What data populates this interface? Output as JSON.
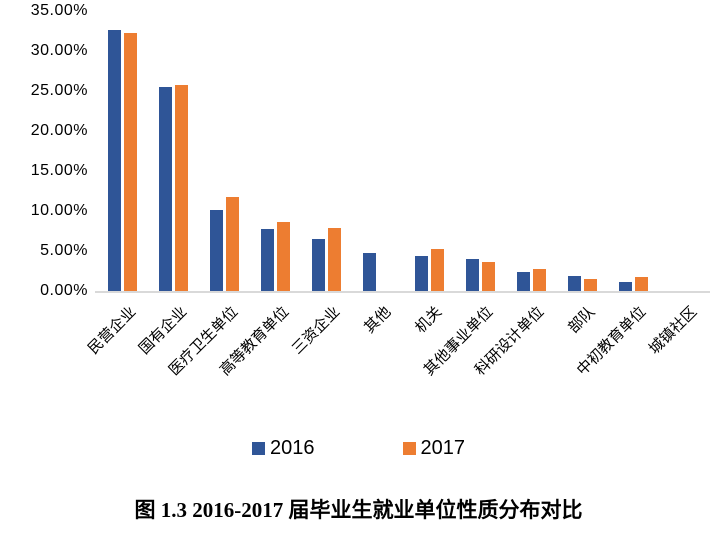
{
  "chart_data": {
    "type": "bar",
    "title": "",
    "categories": [
      "民营企业",
      "国有企业",
      "医疗卫生单位",
      "高等教育单位",
      "三资企业",
      "其他",
      "机关",
      "其他事业单位",
      "科研设计单位",
      "部队",
      "中初教育单位",
      "城镇社区"
    ],
    "series": [
      {
        "name": "2016",
        "color": "#2F5597",
        "values": [
          32.6,
          25.5,
          10.1,
          7.7,
          6.5,
          4.8,
          4.4,
          4.0,
          2.4,
          1.9,
          1.1,
          0
        ]
      },
      {
        "name": "2017",
        "color": "#ED7D31",
        "values": [
          32.2,
          25.7,
          11.8,
          8.6,
          7.9,
          0,
          5.2,
          3.6,
          2.7,
          1.5,
          1.7,
          0
        ]
      }
    ],
    "ylim": [
      0,
      35
    ],
    "ytick_step": 5,
    "ytick_labels": [
      "0.00%",
      "5.00%",
      "10.00%",
      "15.00%",
      "20.00%",
      "25.00%",
      "30.00%",
      "35.00%"
    ],
    "xlabel": "",
    "ylabel": "",
    "grid": false,
    "legend_position": "bottom",
    "x_label_rotation_deg": 45
  },
  "legend": {
    "items": [
      {
        "label": "2016",
        "color": "#2F5597"
      },
      {
        "label": "2017",
        "color": "#ED7D31"
      }
    ]
  },
  "caption": "图 1.3  2016-2017 届毕业生就业单位性质分布对比",
  "colors": {
    "series_2016": "#2F5597",
    "series_2017": "#ED7D31",
    "axis_line": "#d9d9d9",
    "text": "#000000",
    "background": "#ffffff"
  }
}
